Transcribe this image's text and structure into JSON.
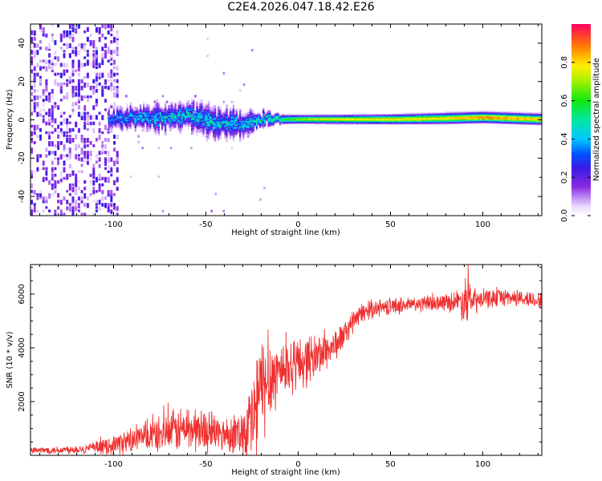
{
  "title": "C2E4.2026.047.18.42.E26",
  "colors": {
    "snr_line": "#f03030",
    "axis": "#000000",
    "spec_bg": "#ffffff"
  },
  "chart_data": [
    {
      "type": "heatmap",
      "name": "spectrogram",
      "xlabel": "Height of straight line (km)",
      "ylabel": "Frequency (Hz)",
      "xlim": [
        -145,
        132
      ],
      "ylim": [
        -50,
        50
      ],
      "xticks": [
        -100,
        -50,
        0,
        50,
        100
      ],
      "xtick_labels": [
        "-100",
        "-50",
        "0",
        "50",
        "100"
      ],
      "yticks": [
        -40,
        -20,
        0,
        20,
        40
      ],
      "ytick_labels": [
        "-40",
        "-20",
        "0",
        "20",
        "40"
      ],
      "colorbar": {
        "label": "Normalized spectral amplitude",
        "range": [
          0.0,
          1.0
        ],
        "ticks": [
          0.0,
          0.2,
          0.4,
          0.6,
          0.8
        ],
        "tick_labels": [
          "0.0",
          "0.2",
          "0.4",
          "0.6",
          "0.8"
        ]
      },
      "signal_band": [
        {
          "x": -103,
          "f": 0,
          "halfwidth": 3.5,
          "amp": 0.35
        },
        {
          "x": -90,
          "f": 1,
          "halfwidth": 4,
          "amp": 0.4
        },
        {
          "x": -75,
          "f": 1,
          "halfwidth": 4.5,
          "amp": 0.45
        },
        {
          "x": -60,
          "f": 2,
          "halfwidth": 5,
          "amp": 0.45
        },
        {
          "x": -45,
          "f": -2,
          "halfwidth": 5.5,
          "amp": 0.45
        },
        {
          "x": -30,
          "f": -3,
          "halfwidth": 5,
          "amp": 0.45
        },
        {
          "x": -20,
          "f": 0,
          "halfwidth": 3,
          "amp": 0.5
        },
        {
          "x": -10,
          "f": 0,
          "halfwidth": 2.2,
          "amp": 0.55
        },
        {
          "x": 0,
          "f": 0,
          "halfwidth": 2,
          "amp": 0.7
        },
        {
          "x": 20,
          "f": 0,
          "halfwidth": 2,
          "amp": 0.8
        },
        {
          "x": 50,
          "f": 0,
          "halfwidth": 2.2,
          "amp": 0.8
        },
        {
          "x": 80,
          "f": 0.5,
          "halfwidth": 2.5,
          "amp": 0.8
        },
        {
          "x": 100,
          "f": 1,
          "halfwidth": 2.5,
          "amp": 0.9
        },
        {
          "x": 132,
          "f": 0,
          "halfwidth": 2.5,
          "amp": 0.85
        }
      ]
    },
    {
      "type": "line",
      "name": "snr",
      "xlabel": "Height of straight line (km)",
      "ylabel": "SNR (10 * v/v)",
      "xlim": [
        -145,
        132
      ],
      "ylim": [
        0,
        7100
      ],
      "xticks": [
        -100,
        -50,
        0,
        50,
        100
      ],
      "xtick_labels": [
        "-100",
        "-50",
        "0",
        "50",
        "100"
      ],
      "yticks": [
        2000,
        4000,
        6000
      ],
      "ytick_labels": [
        "2000",
        "4000",
        "6000"
      ],
      "series": [
        {
          "name": "SNR",
          "x": [
            -145,
            -130,
            -115,
            -105,
            -100,
            -95,
            -90,
            -85,
            -80,
            -75,
            -70,
            -65,
            -60,
            -55,
            -50,
            -45,
            -40,
            -35,
            -30,
            -25,
            -22,
            -20,
            -18,
            -15,
            -12,
            -10,
            -5,
            0,
            5,
            10,
            15,
            20,
            25,
            30,
            35,
            40,
            50,
            60,
            70,
            80,
            88,
            90,
            92,
            95,
            100,
            110,
            120,
            132
          ],
          "y": [
            180,
            200,
            250,
            320,
            400,
            480,
            550,
            650,
            720,
            780,
            850,
            950,
            1000,
            950,
            900,
            850,
            800,
            820,
            900,
            1250,
            1900,
            2500,
            2600,
            2900,
            3100,
            3200,
            3300,
            3450,
            3550,
            3700,
            3900,
            4100,
            4500,
            5000,
            5300,
            5450,
            5550,
            5600,
            5650,
            5700,
            5750,
            5800,
            5850,
            5700,
            5800,
            5900,
            5850,
            5750
          ],
          "noise": [
            100,
            120,
            150,
            220,
            300,
            350,
            400,
            450,
            500,
            550,
            600,
            700,
            750,
            700,
            650,
            600,
            550,
            600,
            700,
            1600,
            1900,
            1700,
            1600,
            1300,
            1100,
            950,
            900,
            850,
            800,
            700,
            600,
            500,
            400,
            350,
            300,
            280,
            260,
            250,
            250,
            260,
            400,
            900,
            700,
            450,
            300,
            280,
            260,
            260
          ]
        }
      ]
    }
  ]
}
